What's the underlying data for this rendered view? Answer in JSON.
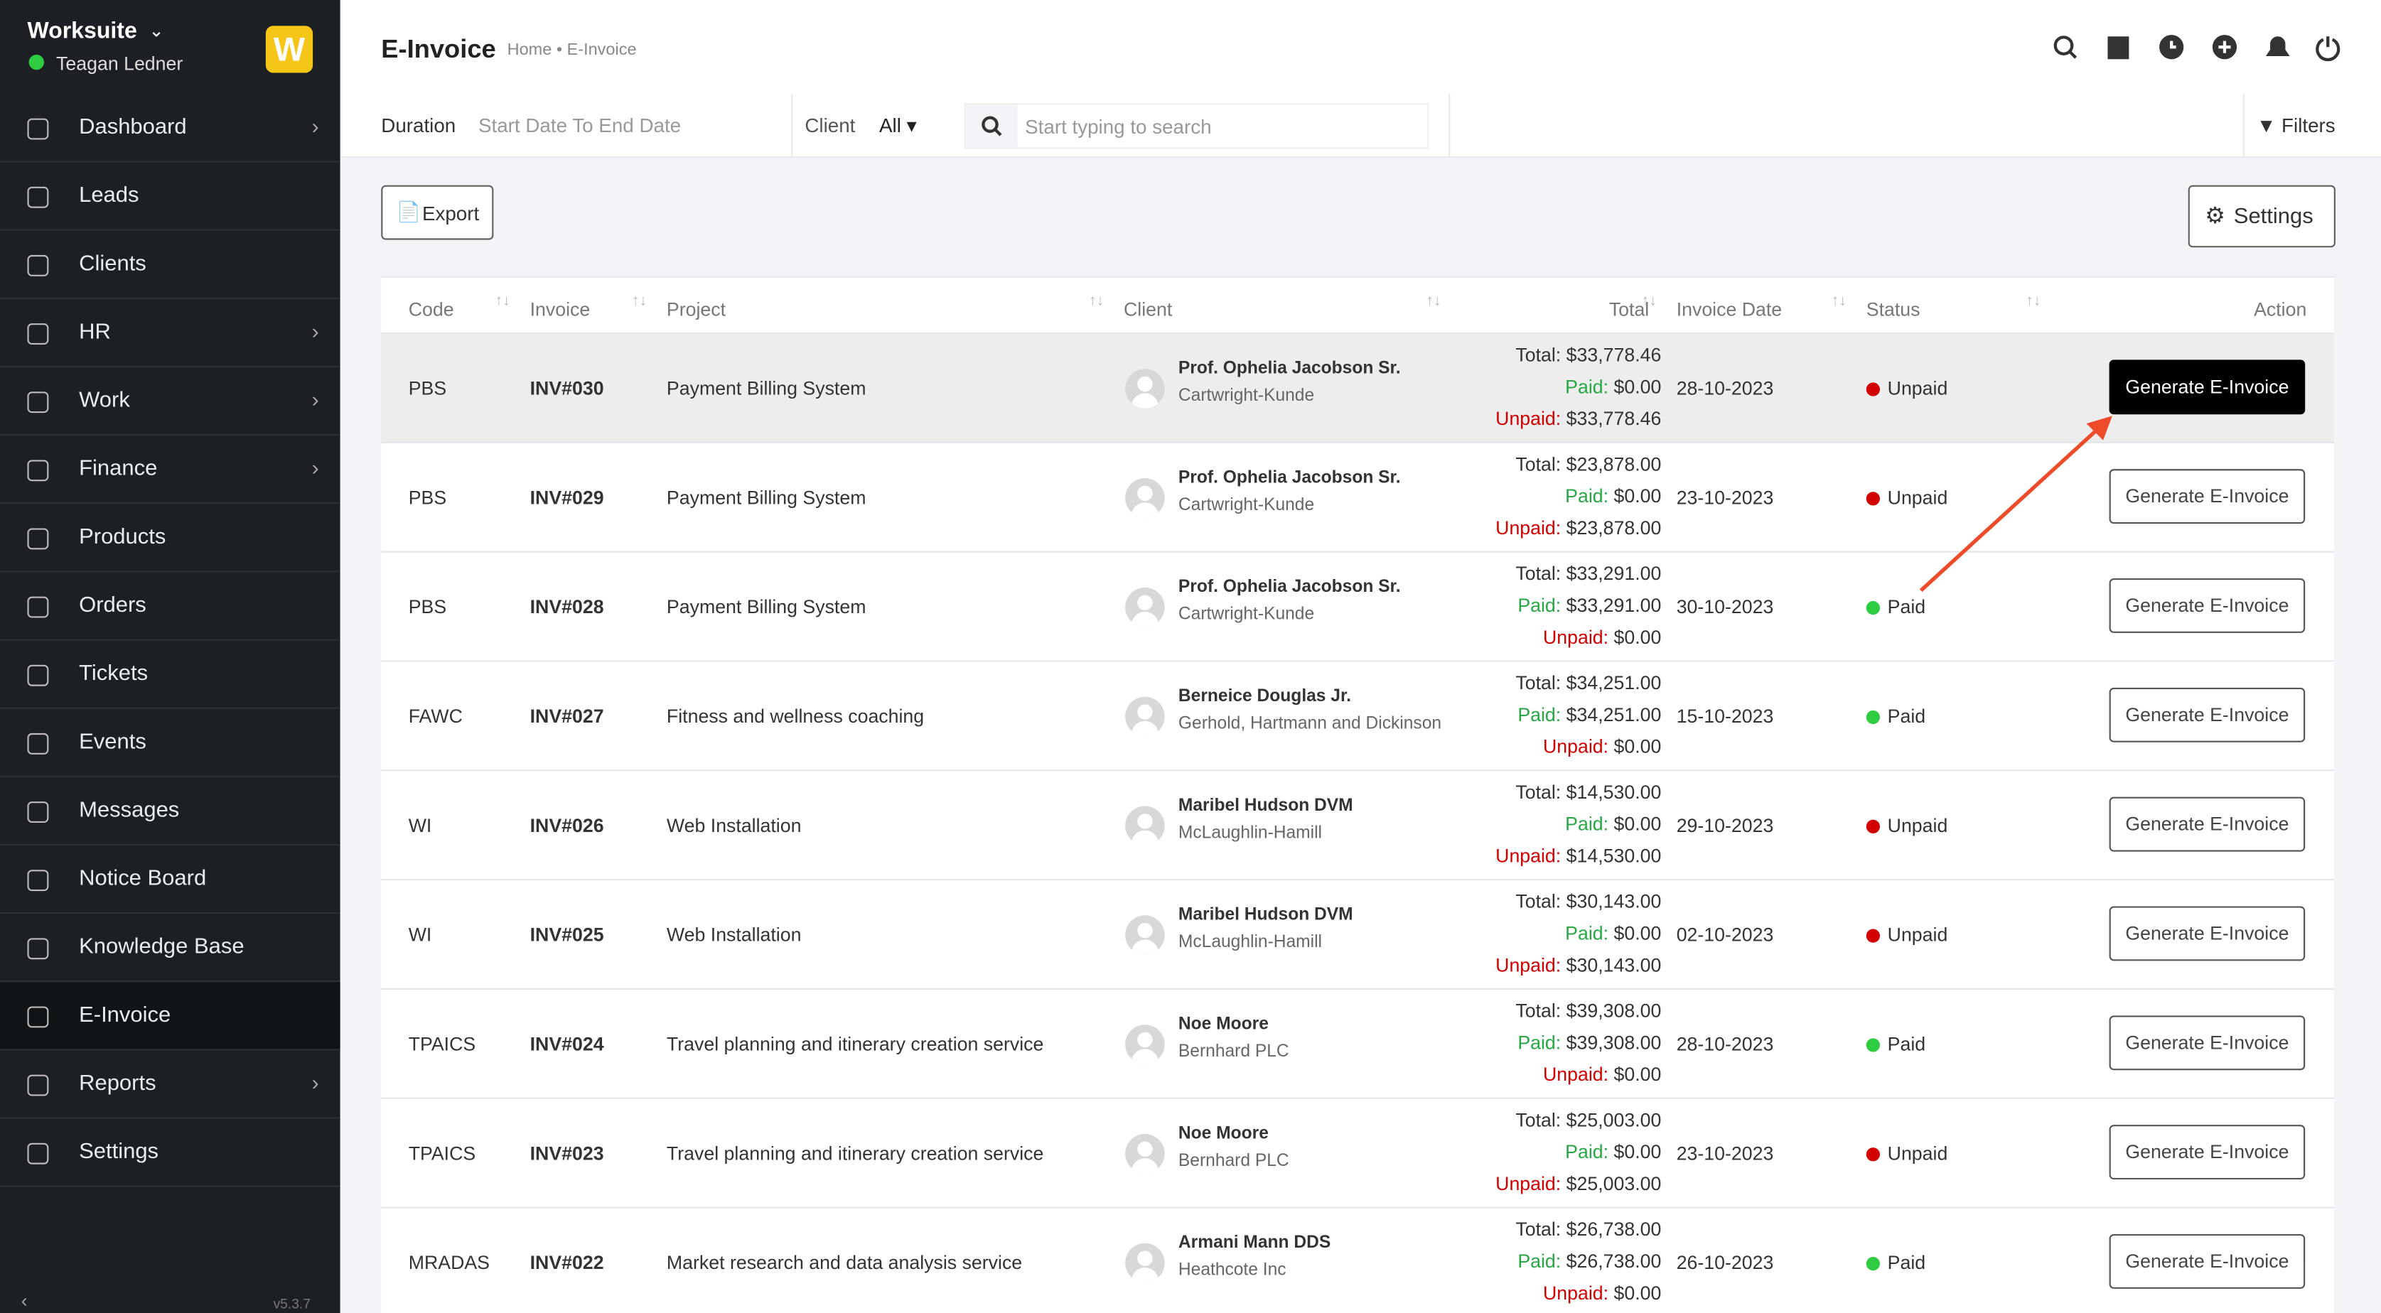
{
  "app": {
    "name": "Worksuite",
    "user": "Teagan Ledner",
    "version": "v5.3.7"
  },
  "sidebar": {
    "items": [
      "Dashboard",
      "Leads",
      "Clients",
      "HR",
      "Work",
      "Finance",
      "Products",
      "Orders",
      "Tickets",
      "Events",
      "Messages",
      "Notice Board",
      "Knowledge Base",
      "E-Invoice",
      "Reports",
      "Settings"
    ]
  },
  "header": {
    "title": "E-Invoice",
    "breadcrumb": [
      "Home",
      "E-Invoice"
    ]
  },
  "filters": {
    "duration_label": "Duration",
    "date_placeholder": "Start Date To End Date",
    "client_label": "Client",
    "client_value": "All",
    "search_placeholder": "Start typing to search",
    "filters_button": "Filters"
  },
  "toolbar": {
    "export": "Export",
    "settings": "Settings"
  },
  "table": {
    "columns": [
      "Code",
      "Invoice",
      "Project",
      "Client",
      "Total",
      "Invoice Date",
      "Status",
      "Action"
    ],
    "amount_labels": [
      "Total:",
      "Paid:",
      "Unpaid:"
    ],
    "action_label": "Generate E-Invoice",
    "rows": [
      {
        "code": "PBS",
        "invoice": "INV#030",
        "project": "Payment Billing System",
        "client": "Prof. Ophelia Jacobson Sr.",
        "company": "Cartwright-Kunde",
        "total": "$33,778.46",
        "paid": "$0.00",
        "unpaid": "$33,778.46",
        "date": "28-10-2023",
        "status": "Unpaid"
      },
      {
        "code": "PBS",
        "invoice": "INV#029",
        "project": "Payment Billing System",
        "client": "Prof. Ophelia Jacobson Sr.",
        "company": "Cartwright-Kunde",
        "total": "$23,878.00",
        "paid": "$0.00",
        "unpaid": "$23,878.00",
        "date": "23-10-2023",
        "status": "Unpaid"
      },
      {
        "code": "PBS",
        "invoice": "INV#028",
        "project": "Payment Billing System",
        "client": "Prof. Ophelia Jacobson Sr.",
        "company": "Cartwright-Kunde",
        "total": "$33,291.00",
        "paid": "$33,291.00",
        "unpaid": "$0.00",
        "date": "30-10-2023",
        "status": "Paid"
      },
      {
        "code": "FAWC",
        "invoice": "INV#027",
        "project": "Fitness and wellness coaching",
        "client": "Berneice Douglas Jr.",
        "company": "Gerhold, Hartmann and Dickinson",
        "total": "$34,251.00",
        "paid": "$34,251.00",
        "unpaid": "$0.00",
        "date": "15-10-2023",
        "status": "Paid"
      },
      {
        "code": "WI",
        "invoice": "INV#026",
        "project": "Web Installation",
        "client": "Maribel Hudson DVM",
        "company": "McLaughlin-Hamill",
        "total": "$14,530.00",
        "paid": "$0.00",
        "unpaid": "$14,530.00",
        "date": "29-10-2023",
        "status": "Unpaid"
      },
      {
        "code": "WI",
        "invoice": "INV#025",
        "project": "Web Installation",
        "client": "Maribel Hudson DVM",
        "company": "McLaughlin-Hamill",
        "total": "$30,143.00",
        "paid": "$0.00",
        "unpaid": "$30,143.00",
        "date": "02-10-2023",
        "status": "Unpaid"
      },
      {
        "code": "TPAICS",
        "invoice": "INV#024",
        "project": "Travel planning and itinerary creation service",
        "client": "Noe Moore",
        "company": "Bernhard PLC",
        "total": "$39,308.00",
        "paid": "$39,308.00",
        "unpaid": "$0.00",
        "date": "28-10-2023",
        "status": "Paid"
      },
      {
        "code": "TPAICS",
        "invoice": "INV#023",
        "project": "Travel planning and itinerary creation service",
        "client": "Noe Moore",
        "company": "Bernhard PLC",
        "total": "$25,003.00",
        "paid": "$0.00",
        "unpaid": "$25,003.00",
        "date": "23-10-2023",
        "status": "Unpaid"
      },
      {
        "code": "MRADAS",
        "invoice": "INV#022",
        "project": "Market research and data analysis service",
        "client": "Armani Mann DDS",
        "company": "Heathcote Inc",
        "total": "$26,738.00",
        "paid": "$26,738.00",
        "unpaid": "$0.00",
        "date": "26-10-2023",
        "status": "Paid"
      }
    ]
  }
}
